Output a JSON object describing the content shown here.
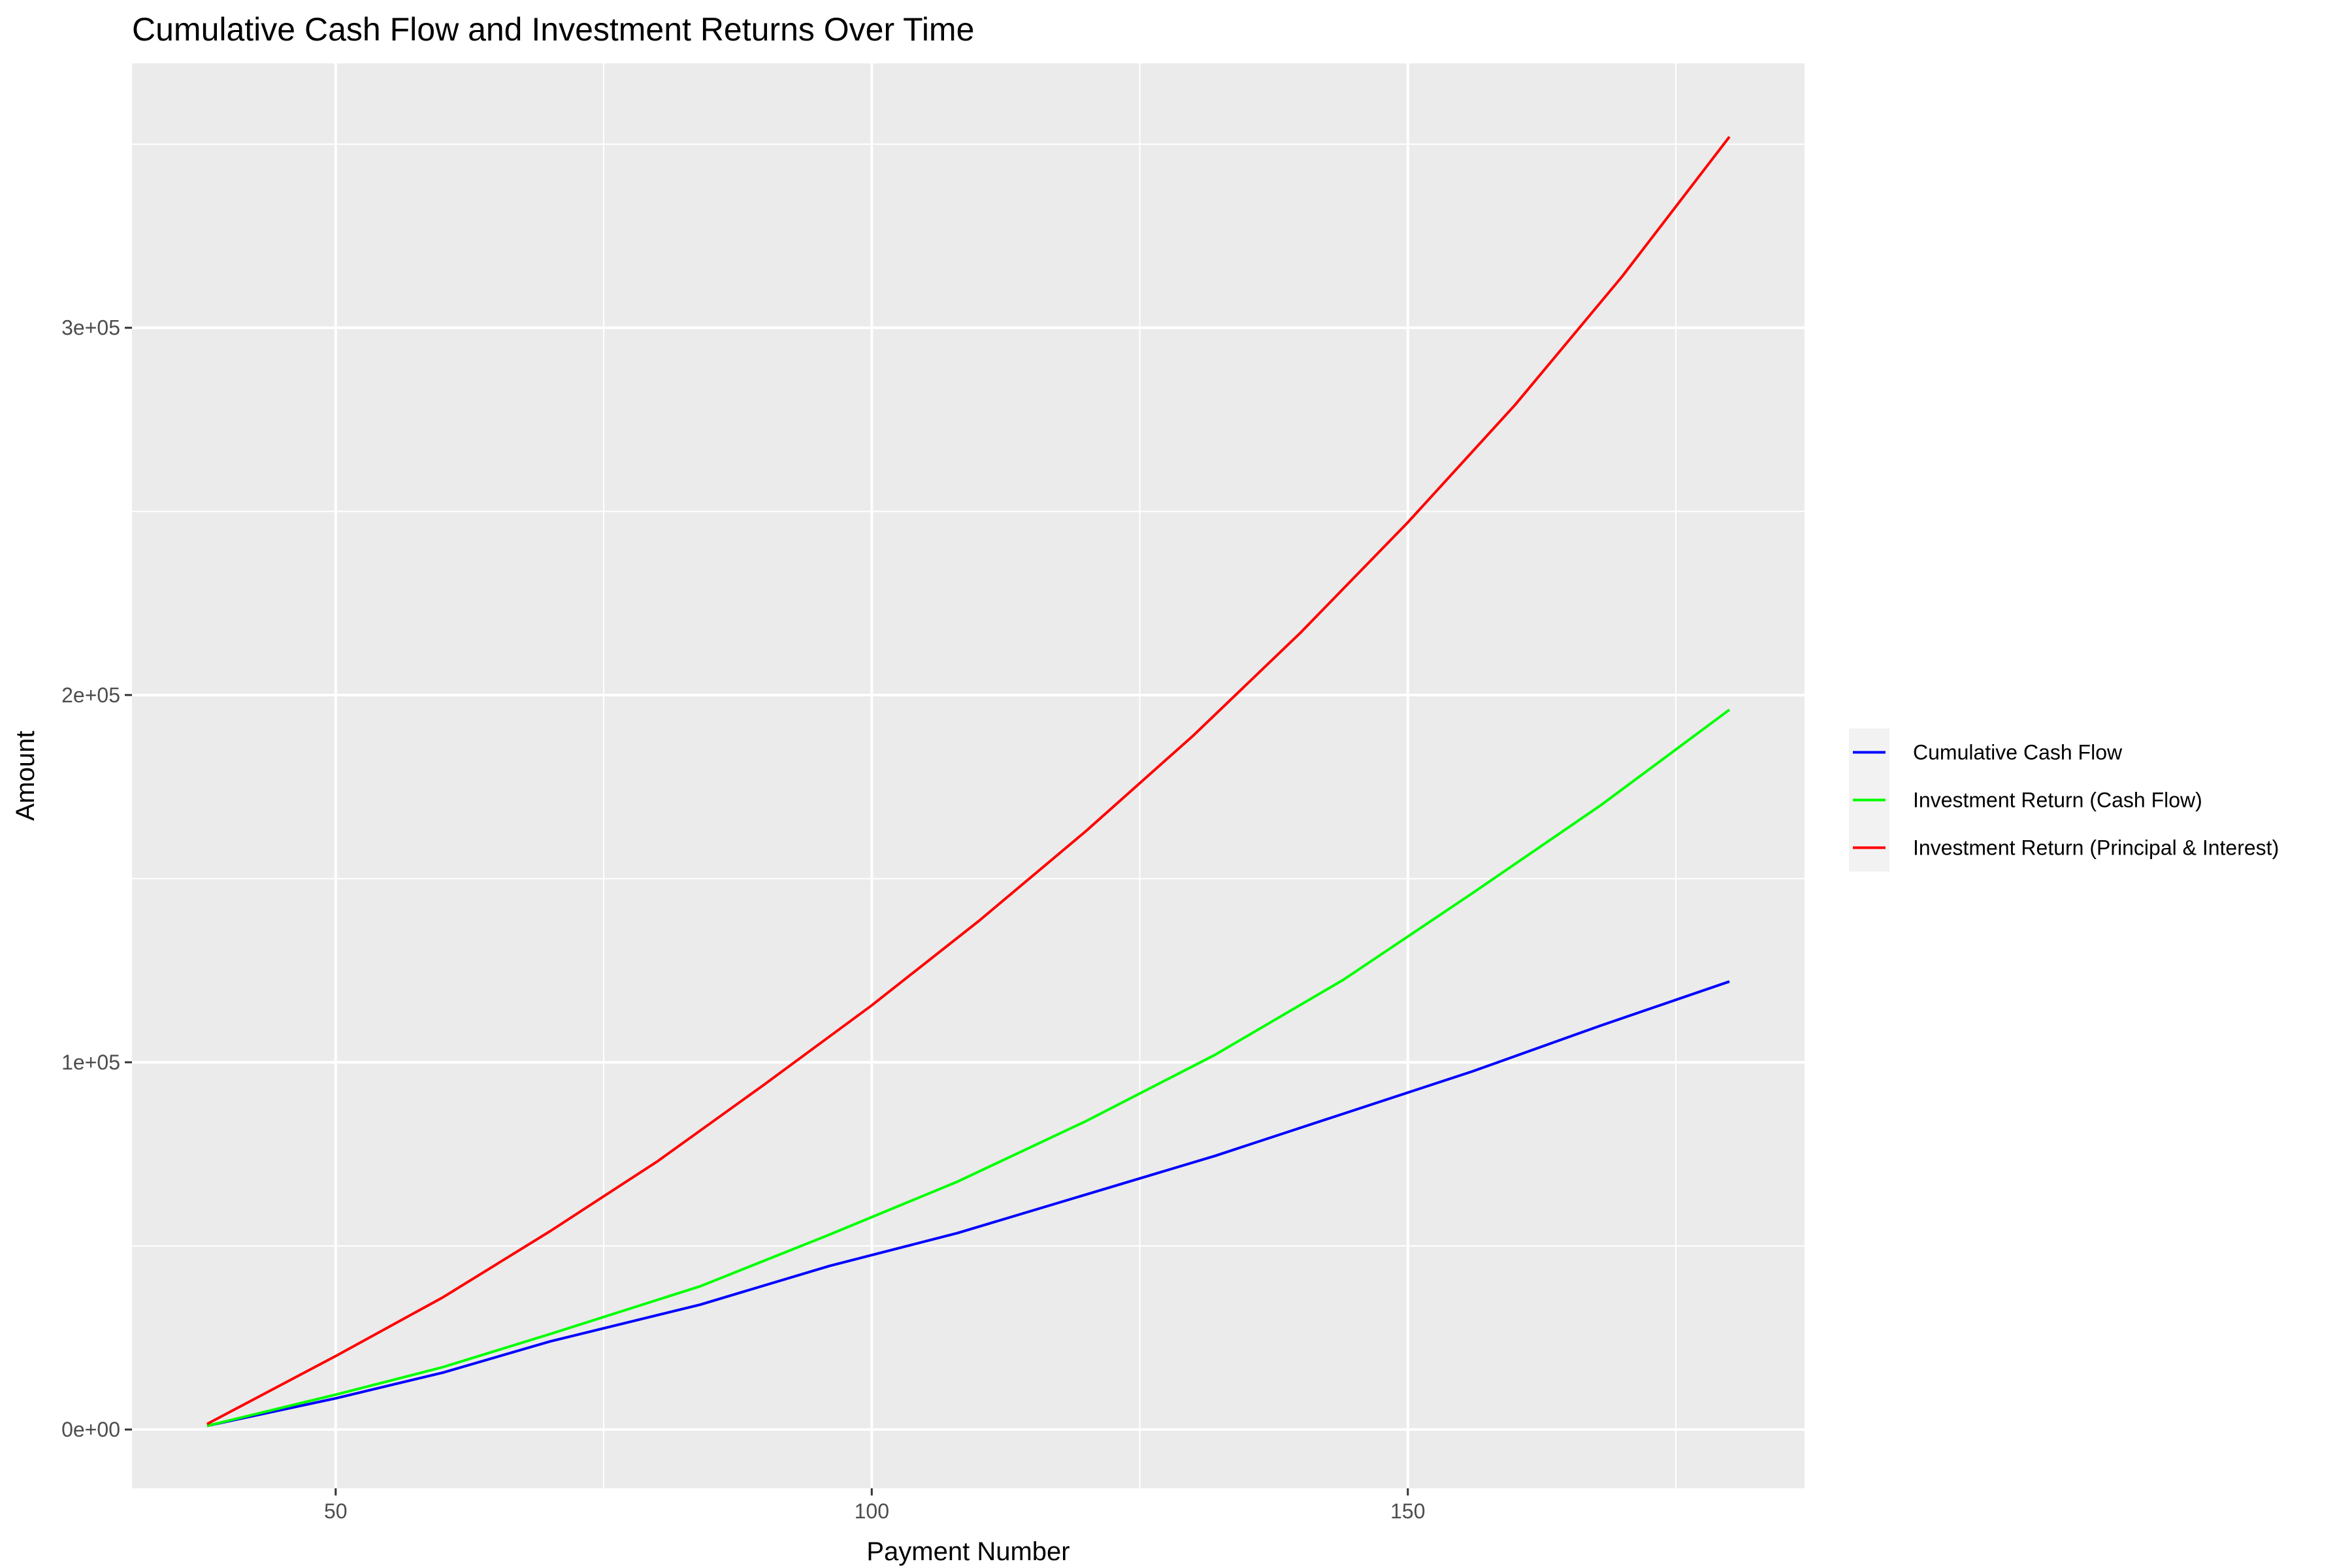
{
  "chart_data": {
    "type": "line",
    "title": "Cumulative Cash Flow and Investment Returns Over Time",
    "xlabel": "Payment Number",
    "ylabel": "Amount",
    "xlim": [
      31,
      187
    ],
    "ylim": [
      -16000,
      372000
    ],
    "x_ticks": [
      {
        "value": 50,
        "label": "50"
      },
      {
        "value": 100,
        "label": "100"
      },
      {
        "value": 150,
        "label": "150"
      }
    ],
    "x_minor_ticks": [
      75,
      125,
      175
    ],
    "y_ticks": [
      {
        "value": 0,
        "label": "0e+00"
      },
      {
        "value": 100000,
        "label": "1e+05"
      },
      {
        "value": 200000,
        "label": "2e+05"
      },
      {
        "value": 300000,
        "label": "3e+05"
      }
    ],
    "y_minor_ticks": [
      50000,
      150000,
      250000,
      350000
    ],
    "grid": true,
    "legend_position": "right",
    "panel_background": "#ebebeb",
    "grid_color": "#ffffff",
    "series": [
      {
        "name": "Cumulative Cash Flow",
        "color": "#0000ff",
        "x": [
          38,
          50,
          60,
          70,
          84,
          96,
          108,
          120,
          132,
          144,
          156,
          168,
          180
        ],
        "y": [
          1000,
          8500,
          15500,
          24000,
          34000,
          44500,
          53500,
          64000,
          74500,
          86000,
          97500,
          110000,
          122000
        ]
      },
      {
        "name": "Investment Return (Cash Flow)",
        "color": "#00ff00",
        "x": [
          38,
          50,
          60,
          70,
          84,
          96,
          108,
          120,
          132,
          144,
          156,
          168,
          180
        ],
        "y": [
          1000,
          9500,
          17000,
          26000,
          39000,
          53000,
          67500,
          84000,
          102000,
          122500,
          146000,
          170000,
          196000
        ]
      },
      {
        "name": "Investment Return (Principal & Interest)",
        "color": "#ff0000",
        "x": [
          38,
          50,
          60,
          70,
          80,
          90,
          100,
          110,
          120,
          130,
          140,
          150,
          160,
          170,
          180
        ],
        "y": [
          1500,
          20000,
          36000,
          54000,
          73000,
          94000,
          115500,
          138500,
          163000,
          189000,
          217000,
          247000,
          279000,
          314000,
          352000
        ]
      }
    ]
  }
}
